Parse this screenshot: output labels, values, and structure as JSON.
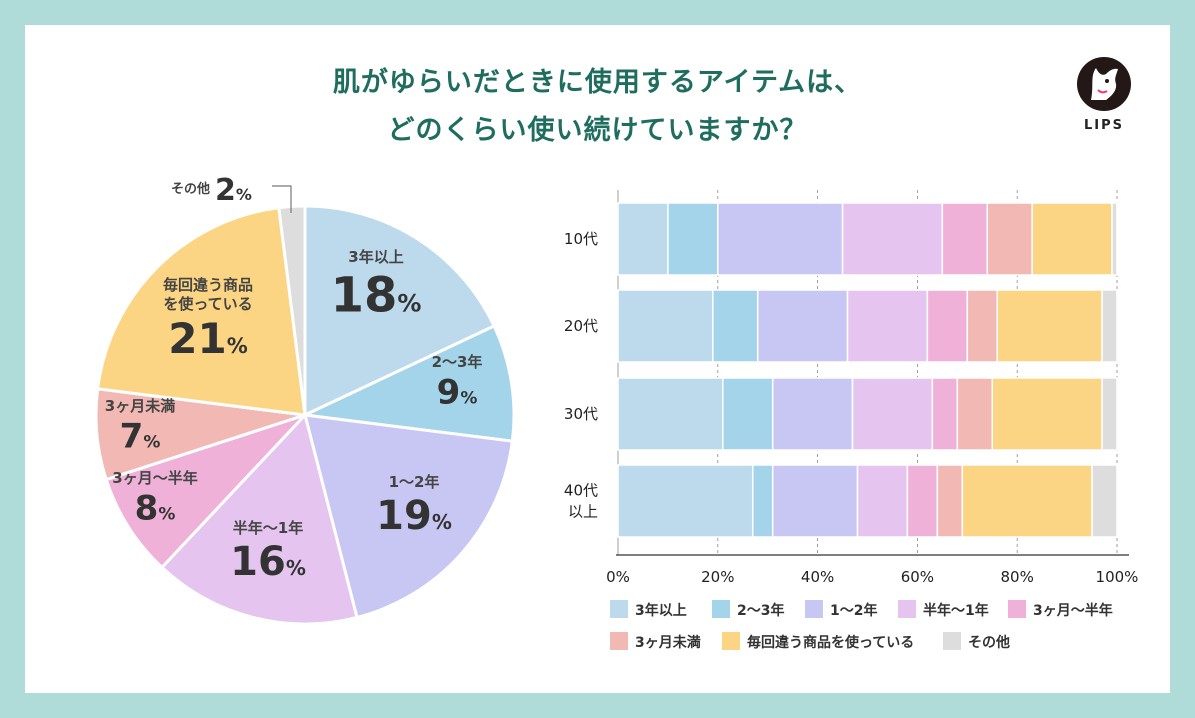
{
  "title": {
    "line1": "肌がゆらいだときに使用するアイテムは、",
    "line2": "どのくらい使い続けていますか？"
  },
  "logo": {
    "text": "LIPS"
  },
  "colors": {
    "bg": "#afdcd9",
    "title": "#1f6d5e",
    "categories": [
      "#bdd9ec",
      "#a3d4ea",
      "#c8c6f3",
      "#e5c4ef",
      "#efb1d8",
      "#f2b8b4",
      "#fcd584",
      "#dddddd"
    ]
  },
  "chart_data": [
    {
      "type": "pie",
      "slices": [
        {
          "label": "3年以上",
          "value": 18,
          "display": "18"
        },
        {
          "label": "2〜3年",
          "value": 9,
          "display": "9"
        },
        {
          "label": "1〜2年",
          "value": 19,
          "display": "19"
        },
        {
          "label": "半年〜1年",
          "value": 16,
          "display": "16"
        },
        {
          "label": "3ヶ月〜半年",
          "value": 8,
          "display": "8"
        },
        {
          "label": "3ヶ月未満",
          "value": 7,
          "display": "7"
        },
        {
          "label": "毎回違う商品を使っている",
          "label_lines": [
            "毎回違う商品",
            "を使っている"
          ],
          "value": 21,
          "display": "21"
        },
        {
          "label": "その他",
          "value": 2,
          "display": "2"
        }
      ],
      "unit": "%"
    },
    {
      "type": "bar",
      "orientation": "horizontal",
      "stacked": true,
      "categories": [
        [
          "10代"
        ],
        [
          "20代"
        ],
        [
          "30代"
        ],
        [
          "40代",
          "以上"
        ]
      ],
      "series": [
        {
          "name": "3年以上",
          "values": [
            10,
            19,
            21,
            27
          ]
        },
        {
          "name": "2〜3年",
          "values": [
            10,
            9,
            10,
            4
          ]
        },
        {
          "name": "1〜2年",
          "values": [
            25,
            18,
            16,
            17
          ]
        },
        {
          "name": "半年〜1年",
          "values": [
            20,
            16,
            16,
            10
          ]
        },
        {
          "name": "3ヶ月〜半年",
          "values": [
            9,
            8,
            5,
            6
          ]
        },
        {
          "name": "3ヶ月未満",
          "values": [
            9,
            6,
            7,
            5
          ]
        },
        {
          "name": "毎回違う商品を使っている",
          "values": [
            16,
            21,
            22,
            26
          ]
        },
        {
          "name": "その他",
          "values": [
            1,
            3,
            3,
            5
          ]
        }
      ],
      "xlim": [
        0,
        100
      ],
      "xticks": [
        "0%",
        "20%",
        "40%",
        "60%",
        "80%",
        "100%"
      ],
      "grid": true
    }
  ]
}
